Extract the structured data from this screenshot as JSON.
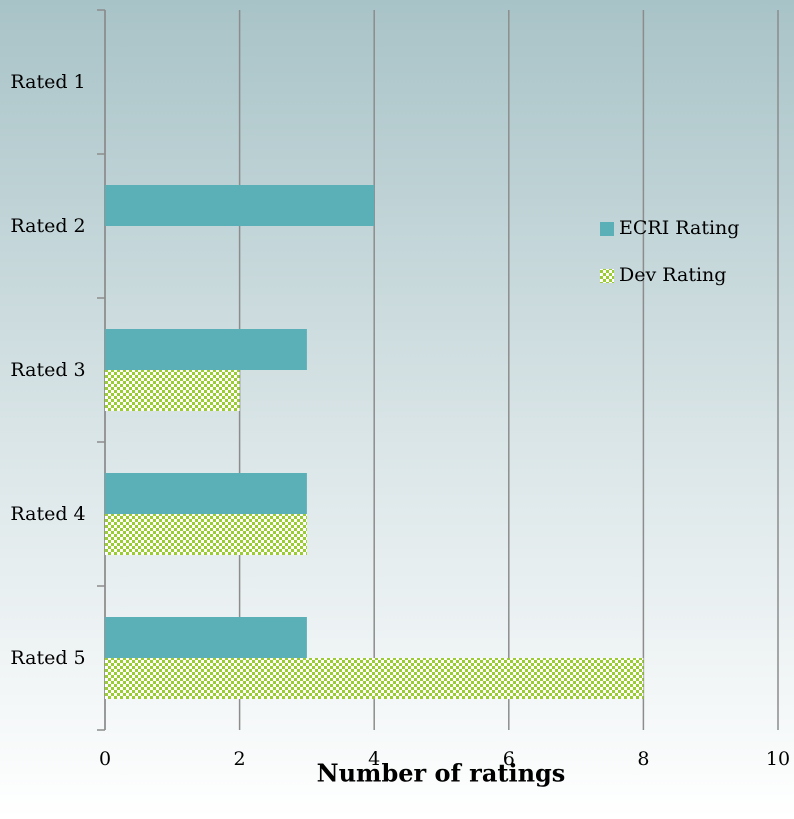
{
  "chart_data": {
    "type": "barh",
    "categories": [
      "Rated 1",
      "Rated 2",
      "Rated 3",
      "Rated 4",
      "Rated 5"
    ],
    "series": [
      {
        "name": "ECRI Rating",
        "color": "#5bb0b8",
        "values": [
          0,
          4,
          3,
          3,
          3
        ]
      },
      {
        "name": "Dev Rating",
        "color": "#9acd32",
        "values": [
          0,
          0,
          2,
          3,
          8
        ]
      }
    ],
    "xlabel": "Number of ratings",
    "xlim": [
      0,
      10
    ],
    "xticks": [
      0,
      2,
      4,
      6,
      8,
      10
    ],
    "grid": true,
    "legend": "right"
  }
}
